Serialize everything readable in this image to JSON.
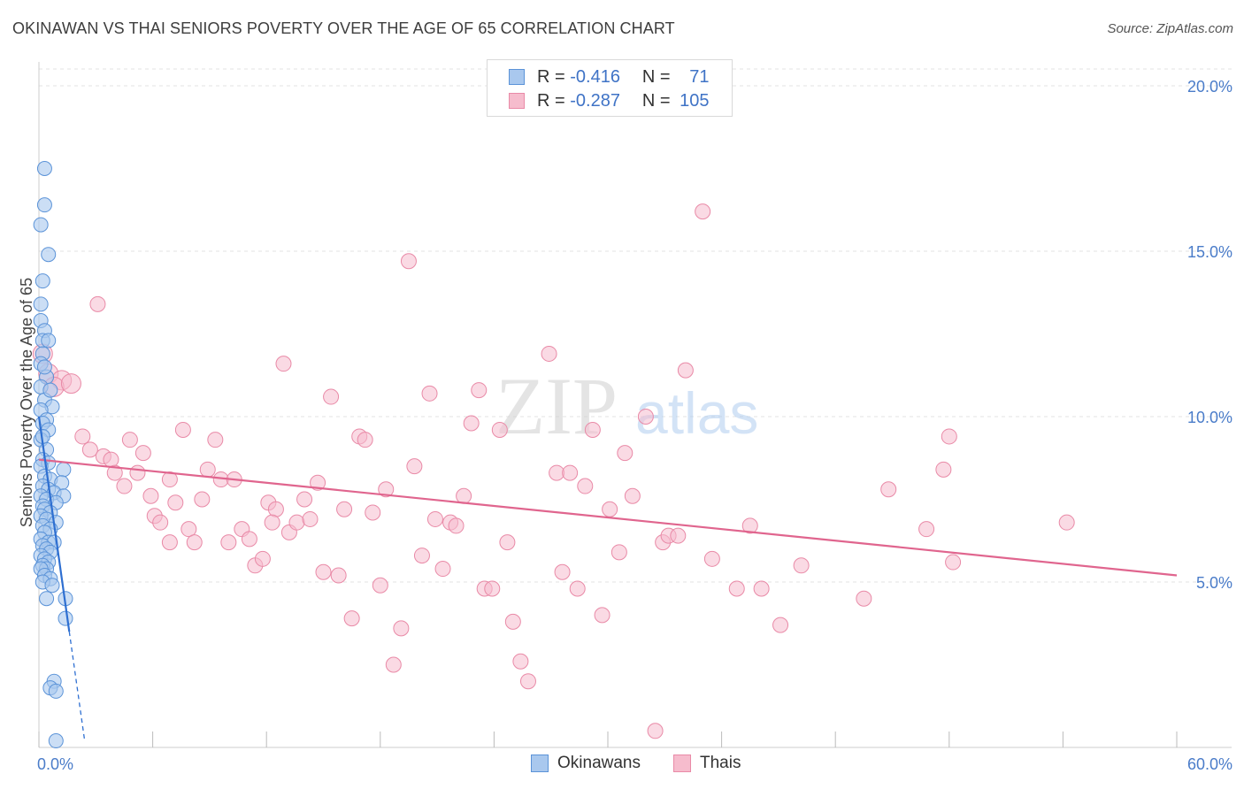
{
  "header": {
    "title": "OKINAWAN VS THAI SENIORS POVERTY OVER THE AGE OF 65 CORRELATION CHART",
    "source": "Source: ZipAtlas.com"
  },
  "legend": {
    "rows": [
      {
        "r_label": "R =",
        "r_value": "-0.416",
        "n_label": "N =",
        "n_value": "71"
      },
      {
        "r_label": "R =",
        "r_value": "-0.287",
        "n_label": "N =",
        "n_value": "105"
      }
    ]
  },
  "bottom_legend": {
    "items": [
      {
        "label": "Okinawans"
      },
      {
        "label": "Thais"
      }
    ]
  },
  "watermark": {
    "zip": "ZIP",
    "atlas": "atlas"
  },
  "colors": {
    "okinawan_fill": "#a9c8ee",
    "okinawan_stroke": "#5b93d8",
    "okinawan_line": "#2e6fd1",
    "thai_fill": "#f6bccd",
    "thai_stroke": "#e98aa7",
    "thai_line": "#e0658e",
    "axis_label": "#4a7cc9",
    "grid": "#e3e3e3"
  },
  "chart_data": {
    "type": "scatter",
    "title": "OKINAWAN VS THAI SENIORS POVERTY OVER THE AGE OF 65 CORRELATION CHART",
    "xlabel": "",
    "ylabel": "Seniors Poverty Over the Age of 65",
    "xlim": [
      0,
      60
    ],
    "ylim": [
      0,
      20.5
    ],
    "x_ticks": [
      0,
      60
    ],
    "x_tick_labels": [
      "0.0%",
      "60.0%"
    ],
    "y_ticks": [
      5,
      10,
      15,
      20
    ],
    "y_tick_labels": [
      "5.0%",
      "10.0%",
      "15.0%",
      "20.0%"
    ],
    "grid": true,
    "legend_position": "top-center",
    "series": [
      {
        "name": "Okinawans",
        "r": -0.416,
        "n": 71,
        "trend": {
          "x0": 0.0,
          "y0": 10.0,
          "x1": 1.6,
          "y1": 3.5,
          "dashed_to_x": 2.4
        },
        "points": [
          [
            0.3,
            17.5
          ],
          [
            0.3,
            16.4
          ],
          [
            0.1,
            15.8
          ],
          [
            0.5,
            14.9
          ],
          [
            0.2,
            14.1
          ],
          [
            0.1,
            13.4
          ],
          [
            0.1,
            12.9
          ],
          [
            0.3,
            12.6
          ],
          [
            0.2,
            12.3
          ],
          [
            0.5,
            12.3
          ],
          [
            0.2,
            11.9
          ],
          [
            0.1,
            11.6
          ],
          [
            0.4,
            11.2
          ],
          [
            0.1,
            10.9
          ],
          [
            0.3,
            10.5
          ],
          [
            0.7,
            10.3
          ],
          [
            0.1,
            10.2
          ],
          [
            0.4,
            9.9
          ],
          [
            0.2,
            9.8
          ],
          [
            0.5,
            9.6
          ],
          [
            0.1,
            9.3
          ],
          [
            0.4,
            9.0
          ],
          [
            0.2,
            8.7
          ],
          [
            0.5,
            8.6
          ],
          [
            0.1,
            8.5
          ],
          [
            1.3,
            8.4
          ],
          [
            0.3,
            8.2
          ],
          [
            0.6,
            8.1
          ],
          [
            1.2,
            8.0
          ],
          [
            0.2,
            7.9
          ],
          [
            0.5,
            7.8
          ],
          [
            0.8,
            7.7
          ],
          [
            1.3,
            7.6
          ],
          [
            0.1,
            7.6
          ],
          [
            0.4,
            7.5
          ],
          [
            0.9,
            7.4
          ],
          [
            0.2,
            7.3
          ],
          [
            0.3,
            7.2
          ],
          [
            0.6,
            7.1
          ],
          [
            0.1,
            7.0
          ],
          [
            0.4,
            6.9
          ],
          [
            0.9,
            6.8
          ],
          [
            0.2,
            6.7
          ],
          [
            0.6,
            6.6
          ],
          [
            0.3,
            6.5
          ],
          [
            0.1,
            6.3
          ],
          [
            0.5,
            6.2
          ],
          [
            0.8,
            6.2
          ],
          [
            0.2,
            6.1
          ],
          [
            0.4,
            6.0
          ],
          [
            0.6,
            5.9
          ],
          [
            0.1,
            5.8
          ],
          [
            0.3,
            5.7
          ],
          [
            0.5,
            5.6
          ],
          [
            0.2,
            5.5
          ],
          [
            0.4,
            5.4
          ],
          [
            0.1,
            5.4
          ],
          [
            0.3,
            5.2
          ],
          [
            0.6,
            5.1
          ],
          [
            0.2,
            5.0
          ],
          [
            0.7,
            4.9
          ],
          [
            1.4,
            4.5
          ],
          [
            0.4,
            4.5
          ],
          [
            1.4,
            3.9
          ],
          [
            0.8,
            2.0
          ],
          [
            0.6,
            1.8
          ],
          [
            0.9,
            1.7
          ],
          [
            0.9,
            0.2
          ],
          [
            0.2,
            9.4
          ],
          [
            0.6,
            10.8
          ],
          [
            0.3,
            11.5
          ]
        ]
      },
      {
        "name": "Thais",
        "r": -0.287,
        "n": 105,
        "trend": {
          "x0": 0.0,
          "y0": 8.7,
          "x1": 60.0,
          "y1": 5.2
        },
        "points": [
          [
            0.2,
            11.9
          ],
          [
            0.5,
            11.3
          ],
          [
            1.2,
            11.1
          ],
          [
            0.8,
            10.9
          ],
          [
            1.7,
            11.0
          ],
          [
            3.1,
            13.4
          ],
          [
            2.3,
            9.4
          ],
          [
            2.7,
            9.0
          ],
          [
            3.4,
            8.8
          ],
          [
            3.8,
            8.7
          ],
          [
            4.0,
            8.3
          ],
          [
            4.5,
            7.9
          ],
          [
            4.8,
            9.3
          ],
          [
            5.2,
            8.3
          ],
          [
            5.5,
            8.9
          ],
          [
            5.9,
            7.6
          ],
          [
            6.1,
            7.0
          ],
          [
            6.4,
            6.8
          ],
          [
            6.9,
            8.1
          ],
          [
            7.2,
            7.4
          ],
          [
            7.6,
            9.6
          ],
          [
            7.9,
            6.6
          ],
          [
            8.2,
            6.2
          ],
          [
            8.6,
            7.5
          ],
          [
            8.9,
            8.4
          ],
          [
            9.3,
            9.3
          ],
          [
            9.6,
            8.1
          ],
          [
            10.0,
            6.2
          ],
          [
            10.3,
            8.1
          ],
          [
            10.7,
            6.6
          ],
          [
            11.1,
            6.3
          ],
          [
            11.4,
            5.5
          ],
          [
            11.8,
            5.7
          ],
          [
            12.1,
            7.4
          ],
          [
            12.5,
            7.2
          ],
          [
            12.9,
            11.6
          ],
          [
            13.2,
            6.5
          ],
          [
            13.6,
            6.8
          ],
          [
            14.0,
            7.5
          ],
          [
            14.3,
            6.9
          ],
          [
            14.7,
            8.0
          ],
          [
            15.0,
            5.3
          ],
          [
            15.4,
            10.6
          ],
          [
            15.8,
            5.2
          ],
          [
            16.1,
            7.2
          ],
          [
            16.5,
            3.9
          ],
          [
            16.9,
            9.4
          ],
          [
            17.2,
            9.3
          ],
          [
            17.6,
            7.1
          ],
          [
            18.0,
            4.9
          ],
          [
            18.3,
            7.8
          ],
          [
            18.7,
            2.5
          ],
          [
            19.1,
            3.6
          ],
          [
            19.5,
            14.7
          ],
          [
            19.8,
            8.5
          ],
          [
            20.2,
            5.8
          ],
          [
            20.6,
            10.7
          ],
          [
            20.9,
            6.9
          ],
          [
            21.3,
            5.4
          ],
          [
            21.7,
            6.8
          ],
          [
            22.0,
            6.7
          ],
          [
            22.4,
            7.6
          ],
          [
            22.8,
            9.8
          ],
          [
            23.2,
            10.8
          ],
          [
            23.5,
            4.8
          ],
          [
            23.9,
            4.8
          ],
          [
            24.3,
            9.6
          ],
          [
            24.7,
            6.2
          ],
          [
            25.0,
            3.8
          ],
          [
            25.4,
            2.6
          ],
          [
            25.8,
            2.0
          ],
          [
            26.9,
            11.9
          ],
          [
            27.3,
            8.3
          ],
          [
            27.6,
            5.3
          ],
          [
            28.0,
            8.3
          ],
          [
            28.4,
            4.8
          ],
          [
            28.8,
            7.9
          ],
          [
            29.2,
            9.6
          ],
          [
            29.7,
            4.0
          ],
          [
            30.1,
            7.2
          ],
          [
            30.6,
            5.9
          ],
          [
            30.9,
            8.9
          ],
          [
            31.3,
            7.6
          ],
          [
            32.0,
            10.0
          ],
          [
            32.5,
            0.5
          ],
          [
            32.9,
            6.2
          ],
          [
            33.2,
            6.4
          ],
          [
            33.7,
            6.4
          ],
          [
            34.1,
            11.4
          ],
          [
            35.0,
            16.2
          ],
          [
            35.5,
            5.7
          ],
          [
            36.8,
            4.8
          ],
          [
            37.5,
            6.7
          ],
          [
            38.1,
            4.8
          ],
          [
            39.1,
            3.7
          ],
          [
            40.2,
            5.5
          ],
          [
            43.5,
            4.5
          ],
          [
            44.8,
            7.8
          ],
          [
            46.8,
            6.6
          ],
          [
            47.7,
            8.4
          ],
          [
            48.0,
            9.4
          ],
          [
            48.2,
            5.6
          ],
          [
            54.2,
            6.8
          ],
          [
            12.3,
            6.8
          ],
          [
            6.9,
            6.2
          ]
        ]
      }
    ]
  }
}
